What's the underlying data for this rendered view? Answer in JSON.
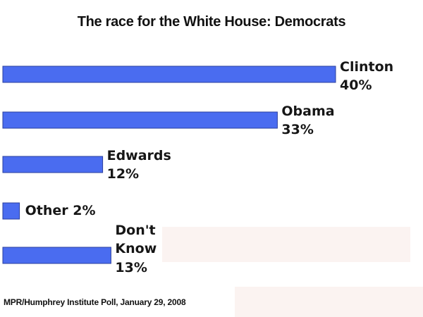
{
  "chart_data": {
    "type": "bar",
    "orientation": "horizontal",
    "title": "The race for the White House: Democrats",
    "categories": [
      "Clinton",
      "Obama",
      "Edwards",
      "Other",
      "Don't Know"
    ],
    "values": [
      40,
      33,
      12,
      2,
      13
    ],
    "value_labels": [
      "40%",
      "33%",
      "12%",
      "2%",
      "13%"
    ],
    "bar_color": "#4a6cf0",
    "xlim": [
      0,
      40
    ],
    "grid": false,
    "source": "MPR/Humphrey Institute Poll, January 29, 2008"
  }
}
